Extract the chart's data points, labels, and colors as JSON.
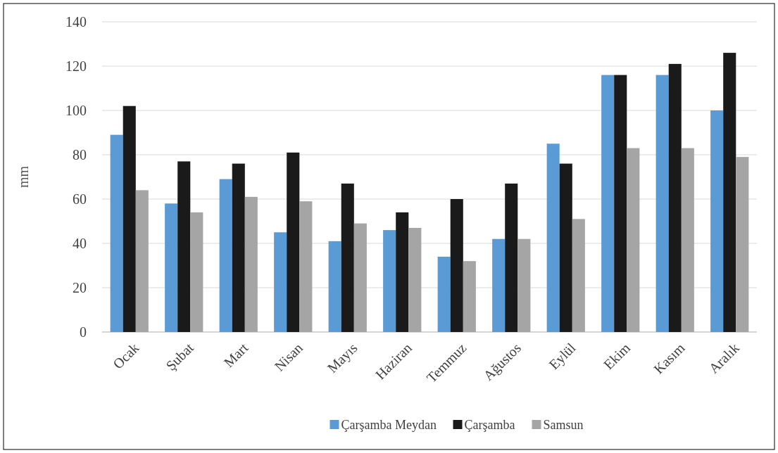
{
  "chart_data": {
    "type": "bar",
    "ylabel": "mm",
    "categories": [
      "Ocak",
      "Şubat",
      "Mart",
      "Nisan",
      "Mayıs",
      "Haziran",
      "Temmuz",
      "Ağustos",
      "Eylül",
      "Ekim",
      "Kasım",
      "Aralık"
    ],
    "series": [
      {
        "name": "Çarşamba Meydan",
        "color": "#5b9bd5",
        "values": [
          89,
          58,
          69,
          45,
          41,
          46,
          34,
          42,
          85,
          116,
          116,
          100
        ]
      },
      {
        "name": "Çarşamba",
        "color": "#1a1a1a",
        "values": [
          102,
          77,
          76,
          81,
          67,
          54,
          60,
          67,
          76,
          116,
          121,
          126
        ]
      },
      {
        "name": "Samsun",
        "color": "#a5a5a5",
        "values": [
          64,
          54,
          61,
          59,
          49,
          47,
          32,
          42,
          51,
          83,
          83,
          79
        ]
      }
    ],
    "ylim": [
      0,
      140
    ],
    "yticks": [
      0,
      20,
      40,
      60,
      80,
      100,
      120,
      140
    ],
    "grid": "y",
    "legend": "bottom"
  }
}
